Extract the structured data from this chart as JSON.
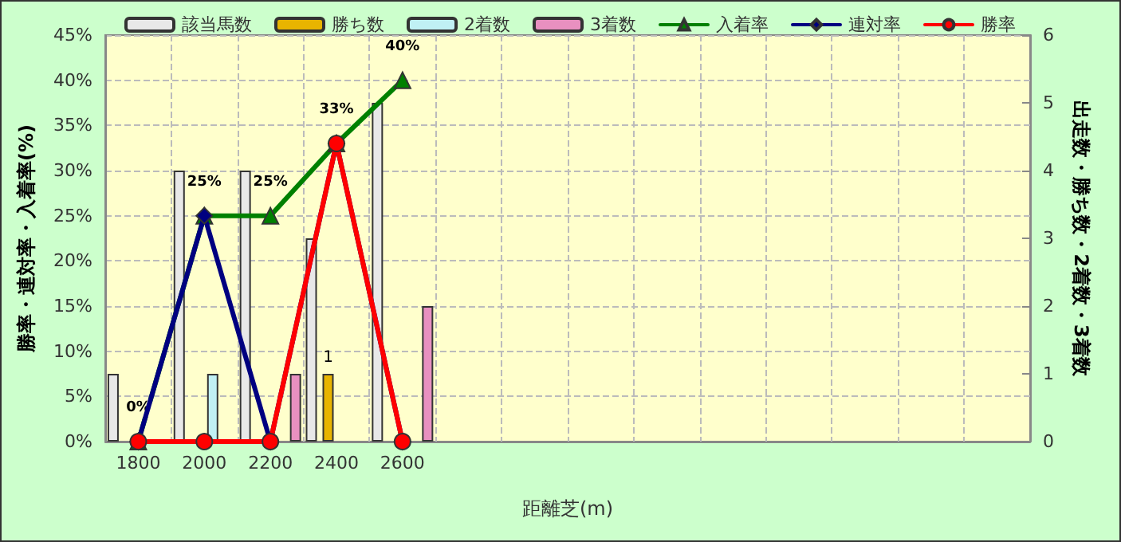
{
  "chart_data": {
    "type": "bar",
    "xlabel": "距離芝(m)",
    "ylabel": "勝率・連対率・入着率(%)",
    "y2label": "出走数・勝ち数・2着数・3着数",
    "categories": [
      "1800",
      "2000",
      "2200",
      "2400",
      "2600",
      null,
      null,
      null,
      null,
      null,
      null,
      null,
      null,
      null
    ],
    "series": [
      {
        "name": "該当馬数",
        "color": "#e8e8e8",
        "axis": "y2",
        "values": [
          1,
          4,
          4,
          3,
          5,
          null,
          null,
          null,
          null,
          null,
          null,
          null,
          null,
          null
        ]
      },
      {
        "name": "勝ち数",
        "color": "#e8b400",
        "axis": "y2",
        "values": [
          0,
          0,
          0,
          1,
          0,
          null,
          null,
          null,
          null,
          null,
          null,
          null,
          null,
          null
        ],
        "value_labels": [
          null,
          null,
          null,
          "1",
          null,
          null,
          null,
          null,
          null,
          null,
          null,
          null,
          null,
          null
        ]
      },
      {
        "name": "2着数",
        "color": "#c0f0f4",
        "axis": "y2",
        "values": [
          0,
          1,
          0,
          0,
          0,
          null,
          null,
          null,
          null,
          null,
          null,
          null,
          null,
          null
        ]
      },
      {
        "name": "3着数",
        "color": "#e890c0",
        "axis": "y2",
        "values": [
          0,
          0,
          1,
          0,
          2,
          null,
          null,
          null,
          null,
          null,
          null,
          null,
          null,
          null
        ]
      },
      {
        "name": "入着率",
        "type": "line",
        "color": "#008000",
        "marker": "triangle",
        "values": [
          0,
          25,
          25,
          33,
          40,
          null,
          null,
          null,
          null,
          null,
          null,
          null,
          null,
          null
        ],
        "value_labels": [
          "0%",
          "25%",
          "25%",
          "33%",
          "40%",
          null,
          null,
          null,
          null,
          null,
          null,
          null,
          null,
          null
        ]
      },
      {
        "name": "連対率",
        "type": "line",
        "color": "#000080",
        "marker": "diamond",
        "values": [
          0,
          25,
          0,
          33,
          0,
          null,
          null,
          null,
          null,
          null,
          null,
          null,
          null,
          null
        ]
      },
      {
        "name": "勝率",
        "type": "line",
        "color": "#ff0000",
        "marker": "circle",
        "values": [
          0,
          0,
          0,
          33,
          0,
          null,
          null,
          null,
          null,
          null,
          null,
          null,
          null,
          null
        ]
      }
    ],
    "ylim": [
      0,
      45
    ],
    "yticks": [
      {
        "value": 0,
        "label": "0%"
      },
      {
        "value": 5,
        "label": "5%"
      },
      {
        "value": 10,
        "label": "10%"
      },
      {
        "value": 15,
        "label": "15%"
      },
      {
        "value": 20,
        "label": "20%"
      },
      {
        "value": 25,
        "label": "25%"
      },
      {
        "value": 30,
        "label": "30%"
      },
      {
        "value": 35,
        "label": "35%"
      },
      {
        "value": 40,
        "label": "40%"
      },
      {
        "value": 45,
        "label": "45%"
      }
    ],
    "y2lim": [
      0,
      6
    ],
    "y2ticks": [
      0,
      1,
      2,
      3,
      4,
      5,
      6
    ],
    "grid": true,
    "legend": "top",
    "line_style": "solid"
  }
}
